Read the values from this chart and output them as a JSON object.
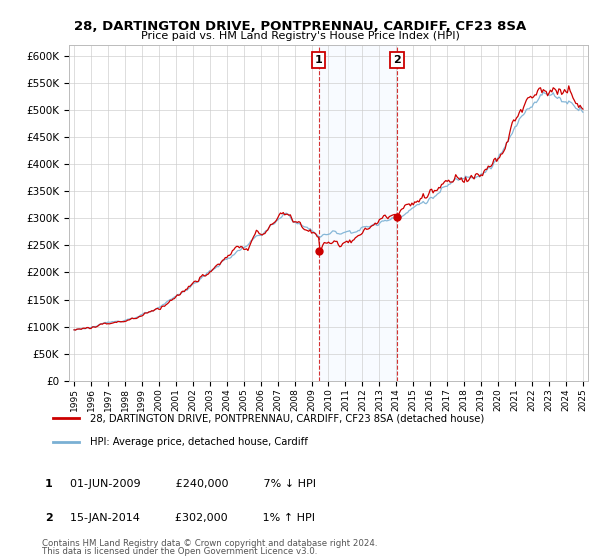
{
  "title": "28, DARTINGTON DRIVE, PONTPRENNAU, CARDIFF, CF23 8SA",
  "subtitle": "Price paid vs. HM Land Registry's House Price Index (HPI)",
  "ylim": [
    0,
    620000
  ],
  "yticks": [
    0,
    50000,
    100000,
    150000,
    200000,
    250000,
    300000,
    350000,
    400000,
    450000,
    500000,
    550000,
    600000
  ],
  "sale1_date_num": 2009.42,
  "sale1_price": 240000,
  "sale2_date_num": 2014.04,
  "sale2_price": 302000,
  "sale1_date_str": "01-JUN-2009",
  "sale1_hpi": "7% ↓ HPI",
  "sale2_date_str": "15-JAN-2014",
  "sale2_hpi": "1% ↑ HPI",
  "legend_label1": "28, DARTINGTON DRIVE, PONTPRENNAU, CARDIFF, CF23 8SA (detached house)",
  "legend_label2": "HPI: Average price, detached house, Cardiff",
  "footer1": "Contains HM Land Registry data © Crown copyright and database right 2024.",
  "footer2": "This data is licensed under the Open Government Licence v3.0.",
  "line_color_red": "#cc0000",
  "line_color_blue": "#7ab0d4",
  "background_color": "#ffffff",
  "grid_color": "#cccccc",
  "annotation_box_color": "#cc0000",
  "shade_color": "#ddeeff",
  "xlim_left": 1994.7,
  "xlim_right": 2025.3
}
